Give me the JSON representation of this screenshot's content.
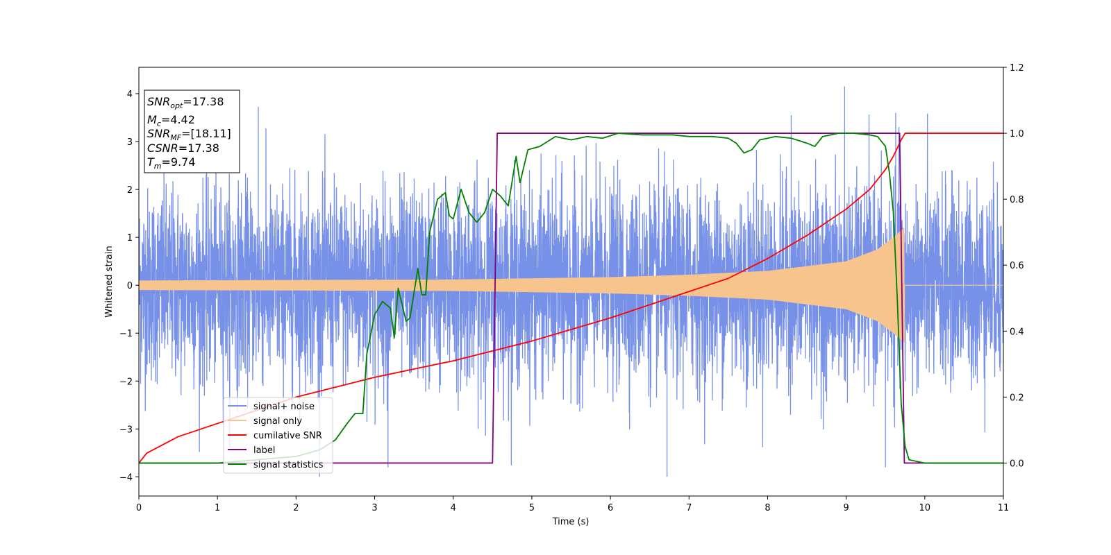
{
  "chart_data": {
    "type": "line",
    "xlabel": "Time (s)",
    "ylabel_left": "Whitened strain",
    "ylabel_right": "",
    "xlim": [
      0,
      11
    ],
    "ylim_left": [
      -4.4,
      4.55
    ],
    "ylim_right": [
      -0.1,
      1.2
    ],
    "x_ticks": [
      "0",
      "1",
      "2",
      "3",
      "4",
      "5",
      "6",
      "7",
      "8",
      "9",
      "10",
      "11"
    ],
    "y_ticks_left": [
      "−4",
      "−3",
      "−2",
      "−1",
      "0",
      "1",
      "2",
      "3",
      "4"
    ],
    "y_ticks_right": [
      "0.0",
      "0.2",
      "0.4",
      "0.6",
      "0.8",
      "1.0",
      "1.2"
    ],
    "grid": false,
    "legend_position": "lower-left",
    "legend": [
      {
        "label": "signal+ noise",
        "color": "#7891e8"
      },
      {
        "label": "signal only",
        "color": "#f6c48c"
      },
      {
        "label": "cumilative SNR",
        "color": "#ff0000"
      },
      {
        "label": "label",
        "color": "#800080"
      },
      {
        "label": "signal statistics",
        "color": "#008000"
      }
    ],
    "info_box": {
      "snr_opt": "=17.38",
      "mc": "=4.42",
      "snr_mf": "=[18.11]",
      "csnr": "=17.38",
      "tm": "=9.74"
    },
    "series": [
      {
        "name": "signal+ noise",
        "axis": "left",
        "color": "#7891e8",
        "kind": "noise",
        "approx_std": 1.0,
        "approx_min": -4.0,
        "approx_max": 4.15,
        "peaks": [
          [
            8.98,
            4.15
          ],
          [
            1.52,
            3.72
          ],
          [
            9.63,
            3.6
          ],
          [
            8.3,
            3.55
          ],
          [
            6.72,
            -4.0
          ],
          [
            9.5,
            -3.8
          ],
          [
            3.17,
            -3.8
          ]
        ]
      },
      {
        "name": "signal only",
        "axis": "left",
        "color": "#f6c48c",
        "kind": "chirp",
        "end_time": 9.74,
        "envelope": [
          [
            0,
            0.1
          ],
          [
            4,
            0.12
          ],
          [
            6,
            0.17
          ],
          [
            7,
            0.22
          ],
          [
            8,
            0.3
          ],
          [
            9,
            0.5
          ],
          [
            9.4,
            0.75
          ],
          [
            9.6,
            1.0
          ],
          [
            9.74,
            1.2
          ]
        ]
      },
      {
        "name": "cumilative SNR",
        "axis": "right",
        "color": "#ff0000",
        "points": [
          [
            0,
            0.0
          ],
          [
            0.1,
            0.03
          ],
          [
            0.5,
            0.08
          ],
          [
            1,
            0.12
          ],
          [
            2,
            0.2
          ],
          [
            3,
            0.26
          ],
          [
            4,
            0.31
          ],
          [
            5,
            0.37
          ],
          [
            6,
            0.44
          ],
          [
            7,
            0.52
          ],
          [
            7.5,
            0.56
          ],
          [
            8,
            0.62
          ],
          [
            8.5,
            0.69
          ],
          [
            9,
            0.77
          ],
          [
            9.3,
            0.83
          ],
          [
            9.5,
            0.89
          ],
          [
            9.6,
            0.93
          ],
          [
            9.7,
            0.98
          ],
          [
            9.75,
            1.0
          ],
          [
            11,
            1.0
          ]
        ]
      },
      {
        "name": "label",
        "axis": "right",
        "color": "#800080",
        "points": [
          [
            0,
            0.0
          ],
          [
            4.5,
            0.0
          ],
          [
            4.56,
            1.0
          ],
          [
            9.68,
            1.0
          ],
          [
            9.74,
            0.0
          ],
          [
            11,
            0.0
          ]
        ]
      },
      {
        "name": "signal statistics",
        "axis": "right",
        "color": "#008000",
        "points": [
          [
            0,
            0.0
          ],
          [
            1,
            0.0
          ],
          [
            2,
            0.02
          ],
          [
            2.3,
            0.04
          ],
          [
            2.5,
            0.07
          ],
          [
            2.65,
            0.12
          ],
          [
            2.75,
            0.15
          ],
          [
            2.85,
            0.15
          ],
          [
            2.9,
            0.33
          ],
          [
            3.0,
            0.45
          ],
          [
            3.1,
            0.49
          ],
          [
            3.2,
            0.47
          ],
          [
            3.25,
            0.38
          ],
          [
            3.3,
            0.53
          ],
          [
            3.4,
            0.43
          ],
          [
            3.45,
            0.44
          ],
          [
            3.55,
            0.59
          ],
          [
            3.6,
            0.51
          ],
          [
            3.65,
            0.51
          ],
          [
            3.7,
            0.7
          ],
          [
            3.8,
            0.8
          ],
          [
            3.9,
            0.82
          ],
          [
            3.95,
            0.75
          ],
          [
            4.0,
            0.74
          ],
          [
            4.1,
            0.83
          ],
          [
            4.2,
            0.76
          ],
          [
            4.3,
            0.73
          ],
          [
            4.4,
            0.76
          ],
          [
            4.5,
            0.83
          ],
          [
            4.6,
            0.81
          ],
          [
            4.7,
            0.78
          ],
          [
            4.8,
            0.93
          ],
          [
            4.85,
            0.85
          ],
          [
            4.95,
            0.95
          ],
          [
            5.1,
            0.96
          ],
          [
            5.3,
            0.99
          ],
          [
            5.5,
            0.98
          ],
          [
            5.7,
            0.99
          ],
          [
            5.9,
            0.985
          ],
          [
            6.1,
            1.0
          ],
          [
            6.4,
            0.995
          ],
          [
            6.8,
            0.995
          ],
          [
            7.0,
            0.99
          ],
          [
            7.3,
            0.99
          ],
          [
            7.5,
            0.985
          ],
          [
            7.6,
            0.97
          ],
          [
            7.7,
            0.94
          ],
          [
            7.8,
            0.95
          ],
          [
            7.9,
            0.98
          ],
          [
            8.1,
            0.99
          ],
          [
            8.3,
            0.985
          ],
          [
            8.5,
            0.97
          ],
          [
            8.6,
            0.96
          ],
          [
            8.7,
            0.99
          ],
          [
            8.9,
            1.0
          ],
          [
            9.1,
            1.0
          ],
          [
            9.3,
            0.995
          ],
          [
            9.4,
            0.99
          ],
          [
            9.5,
            0.96
          ],
          [
            9.55,
            0.88
          ],
          [
            9.6,
            0.76
          ],
          [
            9.65,
            0.5
          ],
          [
            9.7,
            0.18
          ],
          [
            9.75,
            0.05
          ],
          [
            9.8,
            0.01
          ],
          [
            10.0,
            0.0
          ],
          [
            11,
            0.0
          ]
        ]
      }
    ]
  }
}
